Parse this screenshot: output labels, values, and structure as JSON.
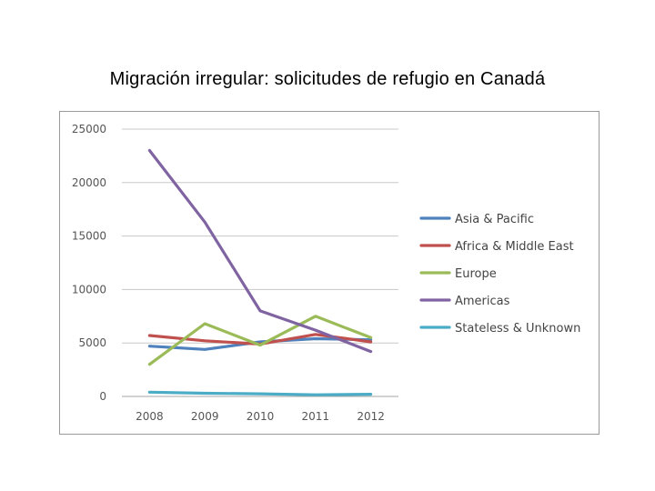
{
  "slide": {
    "title": "Migración irregular: solicitudes de refugio en Canadá"
  },
  "chart_data": {
    "type": "line",
    "title": "",
    "xlabel": "",
    "ylabel": "",
    "categories": [
      "2008",
      "2009",
      "2010",
      "2011",
      "2012"
    ],
    "ylim": [
      0,
      25000
    ],
    "yticks": [
      0,
      5000,
      10000,
      15000,
      20000,
      25000
    ],
    "grid": true,
    "legend_position": "right",
    "series": [
      {
        "name": "Asia & Pacific",
        "color": "#4f81bd",
        "values": [
          4700,
          4400,
          5100,
          5400,
          5300
        ]
      },
      {
        "name": "Africa & Middle East",
        "color": "#c0504d",
        "values": [
          5700,
          5200,
          4900,
          5800,
          5100
        ]
      },
      {
        "name": "Europe",
        "color": "#9bbb59",
        "values": [
          3000,
          6800,
          4800,
          7500,
          5500
        ]
      },
      {
        "name": "Americas",
        "color": "#8064a2",
        "values": [
          23000,
          16300,
          8000,
          6200,
          4200
        ]
      },
      {
        "name": "Stateless & Unknown",
        "color": "#4bacc6",
        "values": [
          400,
          300,
          250,
          150,
          200
        ]
      }
    ]
  }
}
